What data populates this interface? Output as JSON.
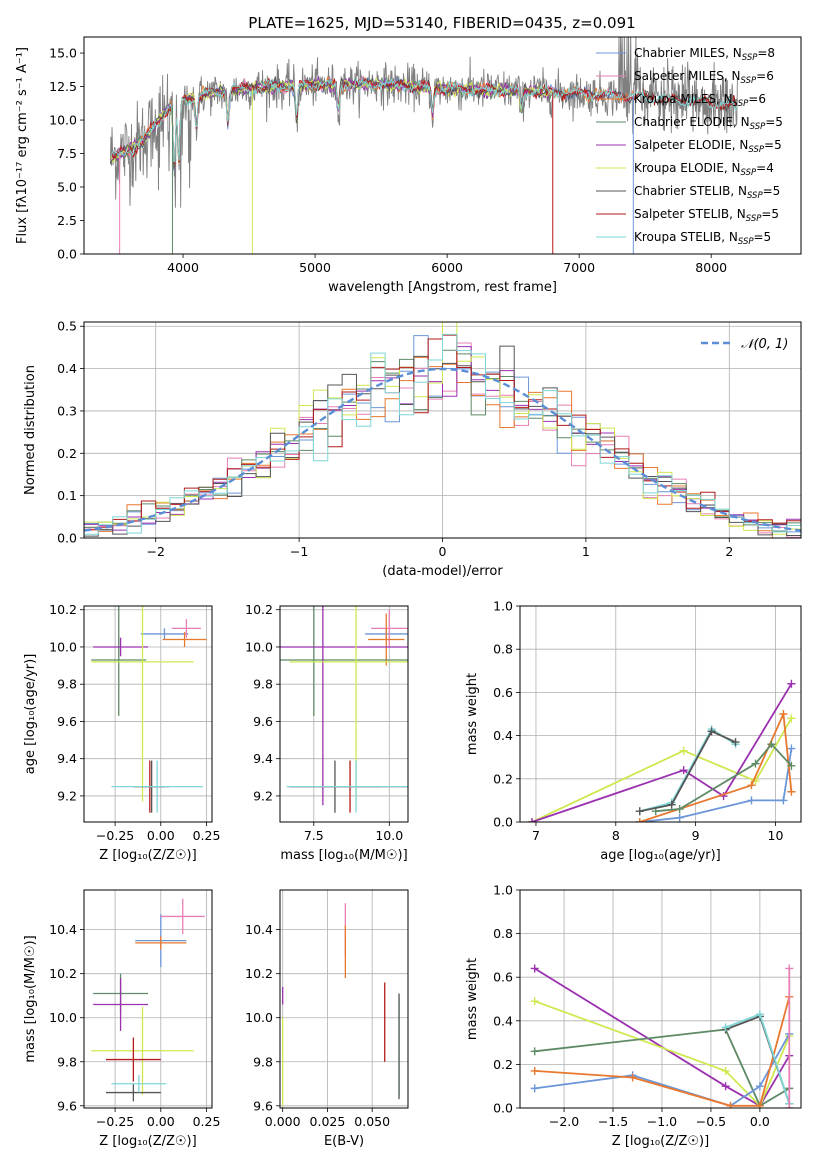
{
  "figure_title": "PLATE=1625, MJD=53140, FIBERID=0435, z=0.091",
  "colors": {
    "Chabrier MILES": "#6b96d8",
    "Salpeter MILES": "#e87fb4",
    "Kroupa MILES": "#e8782e",
    "Chabrier ELODIE": "#5e8a66",
    "Salpeter ELODIE": "#9b30b0",
    "Kroupa ELODIE": "#cfe850",
    "Chabrier STELIB": "#555555",
    "Salpeter STELIB": "#b31a1a",
    "Kroupa STELIB": "#7fd6d6",
    "data": "#7f7f7f"
  },
  "chart_data": [
    {
      "id": "spectrum",
      "type": "line",
      "title": "PLATE=1625, MJD=53140, FIBERID=0435, z=0.091",
      "xlabel": "wavelength [Angstrom, rest frame]",
      "ylabel": "Flux [fλ10⁻¹⁷ erg cm⁻² s⁻¹ A⁻¹]",
      "xlim": [
        3250,
        8680
      ],
      "ylim": [
        0,
        16.2
      ],
      "xticks": [
        "4000",
        "5000",
        "6000",
        "7000",
        "8000"
      ],
      "yticks": [
        "0.0",
        "2.5",
        "5.0",
        "7.5",
        "10.0",
        "12.5",
        "15.0"
      ],
      "legend_position": "top-right",
      "legend": [
        {
          "label": "Chabrier MILES, N",
          "sub": "SSP",
          "eq": "=8"
        },
        {
          "label": "Salpeter MILES, N",
          "sub": "SSP",
          "eq": "=6"
        },
        {
          "label": "Kroupa MILES, N",
          "sub": "SSP",
          "eq": "=6"
        },
        {
          "label": "Chabrier ELODIE, N",
          "sub": "SSP",
          "eq": "=5"
        },
        {
          "label": "Salpeter ELODIE, N",
          "sub": "SSP",
          "eq": "=5"
        },
        {
          "label": "Kroupa ELODIE, N",
          "sub": "SSP",
          "eq": "=4"
        },
        {
          "label": "Chabrier STELIB, N",
          "sub": "SSP",
          "eq": "=5"
        },
        {
          "label": "Salpeter STELIB, N",
          "sub": "SSP",
          "eq": "=5"
        },
        {
          "label": "Kroupa STELIB, N",
          "sub": "SSP",
          "eq": "=5"
        }
      ],
      "continuum": {
        "x": [
          3450,
          3600,
          3700,
          3800,
          3900,
          4000,
          4200,
          4500,
          5000,
          5500,
          6000,
          6500,
          7000,
          7500,
          8000,
          8200
        ],
        "y": [
          7.2,
          7.8,
          8.5,
          9.8,
          11.0,
          11.5,
          12.0,
          12.4,
          12.6,
          12.7,
          12.3,
          12.2,
          12.0,
          11.7,
          11.3,
          11.0
        ]
      },
      "absorption_lines": [
        {
          "x": 3934,
          "depth": 0.45
        },
        {
          "x": 3968,
          "depth": 0.4
        },
        {
          "x": 4102,
          "depth": 0.2
        },
        {
          "x": 4340,
          "depth": 0.2
        },
        {
          "x": 4861,
          "depth": 0.2
        },
        {
          "x": 5175,
          "depth": 0.15
        },
        {
          "x": 5890,
          "depth": 0.15
        },
        {
          "x": 6563,
          "depth": 0.12
        }
      ],
      "spikes": [
        {
          "x": 3520,
          "y": 0.0
        },
        {
          "x": 3920,
          "y": 0.0
        },
        {
          "x": 4525,
          "y": 0.0
        },
        {
          "x": 6800,
          "y": 0.0
        },
        {
          "x": 7410,
          "y": 0.0
        }
      ]
    },
    {
      "id": "residuals",
      "type": "histogram",
      "xlabel": "(data-model)/error",
      "ylabel": "Normed distribution",
      "xlim": [
        -2.5,
        2.5
      ],
      "ylim": [
        0,
        0.51
      ],
      "xticks": [
        "−2",
        "−1",
        "0",
        "1",
        "2"
      ],
      "yticks": [
        "0.0",
        "0.1",
        "0.2",
        "0.3",
        "0.4",
        "0.5"
      ],
      "bin_width": 0.1,
      "legend": "𝒩(0, 1)",
      "gaussian_sigma": 1.0
    },
    {
      "id": "age_vs_Z",
      "type": "errorbar",
      "xlabel": "Z [log₁₀(Z/Z☉)]",
      "ylabel": "age  [log₁₀(age/yr)]",
      "xlim": [
        -0.42,
        0.28
      ],
      "ylim": [
        9.06,
        10.22
      ],
      "xticks": [
        "−0.25",
        "0.00",
        "0.25"
      ],
      "yticks": [
        "9.2",
        "9.4",
        "9.6",
        "9.8",
        "10.0",
        "10.2"
      ],
      "points": [
        {
          "model": "Chabrier MILES",
          "x": 0.02,
          "xerr": 0.13,
          "y": 10.07,
          "yerr": 0.03
        },
        {
          "model": "Salpeter MILES",
          "x": 0.14,
          "xerr": 0.08,
          "y": 10.1,
          "yerr": 0.05
        },
        {
          "model": "Kroupa MILES",
          "x": 0.13,
          "xerr": 0.12,
          "y": 10.04,
          "yerr": 0.04
        },
        {
          "model": "Chabrier ELODIE",
          "x": -0.23,
          "xerr": 0.15,
          "y": 9.93,
          "yerr": 0.3
        },
        {
          "model": "Salpeter ELODIE",
          "x": -0.22,
          "xerr": 0.15,
          "y": 10.0,
          "yerr": 0.05
        },
        {
          "model": "Kroupa ELODIE",
          "x": -0.1,
          "xerr": 0.28,
          "y": 9.92,
          "yerr": 0.75
        },
        {
          "model": "Chabrier STELIB",
          "x": -0.05,
          "xerr": 0.1,
          "y": 9.25,
          "yerr": 0.14
        },
        {
          "model": "Salpeter STELIB",
          "x": -0.06,
          "xerr": 0.08,
          "y": 9.25,
          "yerr": 0.14
        },
        {
          "model": "Kroupa STELIB",
          "x": -0.02,
          "xerr": 0.25,
          "y": 9.25,
          "yerr": 0.14
        }
      ]
    },
    {
      "id": "age_vs_mass",
      "type": "errorbar",
      "xlabel": "mass [log₁₀(M/M☉)]",
      "ylabel": "",
      "xlim": [
        6.38,
        10.62
      ],
      "ylim": [
        9.06,
        10.22
      ],
      "xticks": [
        "7.5",
        "10.0"
      ],
      "yticks": [
        "9.2",
        "9.4",
        "9.6",
        "9.8",
        "10.0",
        "10.2"
      ],
      "points": [
        {
          "model": "Chabrier MILES",
          "x": 9.9,
          "xerr": 0.7,
          "y": 10.07,
          "yerr": 0.03
        },
        {
          "model": "Salpeter MILES",
          "x": 10.0,
          "xerr": 0.6,
          "y": 10.1,
          "yerr": 0.1
        },
        {
          "model": "Kroupa MILES",
          "x": 9.9,
          "xerr": 0.6,
          "y": 10.04,
          "yerr": 0.14
        },
        {
          "model": "Chabrier ELODIE",
          "x": 7.5,
          "xerr": 3.6,
          "y": 9.93,
          "yerr": 0.3
        },
        {
          "model": "Salpeter ELODIE",
          "x": 7.8,
          "xerr": 3.1,
          "y": 10.0,
          "yerr": 0.85
        },
        {
          "model": "Kroupa ELODIE",
          "x": 8.9,
          "xerr": 2.2,
          "y": 9.92,
          "yerr": 0.75
        },
        {
          "model": "Chabrier STELIB",
          "x": 8.2,
          "xerr": 1.5,
          "y": 9.25,
          "yerr": 0.14
        },
        {
          "model": "Salpeter STELIB",
          "x": 8.7,
          "xerr": 2.0,
          "y": 9.25,
          "yerr": 0.14
        },
        {
          "model": "Kroupa STELIB",
          "x": 8.9,
          "xerr": 2.3,
          "y": 9.25,
          "yerr": 0.14
        }
      ]
    },
    {
      "id": "massweight_vs_age",
      "type": "line",
      "xlabel": "age  [log₁₀(age/yr)]",
      "ylabel": "mass weight",
      "xlim": [
        6.8,
        10.32
      ],
      "ylim": [
        0,
        1.0
      ],
      "xticks": [
        "7",
        "8",
        "9",
        "10"
      ],
      "yticks": [
        "0.0",
        "0.2",
        "0.4",
        "0.6",
        "0.8",
        "1.0"
      ],
      "series": [
        {
          "model": "Kroupa ELODIE",
          "x": [
            6.95,
            8.85,
            9.75,
            10.2
          ],
          "y": [
            0.0,
            0.33,
            0.19,
            0.48
          ]
        },
        {
          "model": "Salpeter ELODIE",
          "x": [
            6.95,
            8.85,
            9.35,
            10.2
          ],
          "y": [
            0.0,
            0.24,
            0.12,
            0.64
          ]
        },
        {
          "model": "Chabrier MILES",
          "x": [
            8.3,
            8.8,
            9.7,
            10.1,
            10.2
          ],
          "y": [
            0.0,
            0.02,
            0.1,
            0.1,
            0.34
          ]
        },
        {
          "model": "Kroupa MILES",
          "x": [
            8.3,
            9.7,
            10.1,
            10.2
          ],
          "y": [
            0.0,
            0.17,
            0.5,
            0.14
          ]
        },
        {
          "model": "Chabrier ELODIE",
          "x": [
            8.5,
            8.8,
            9.75,
            9.95,
            10.2
          ],
          "y": [
            0.05,
            0.06,
            0.27,
            0.36,
            0.26
          ]
        },
        {
          "model": "Kroupa STELIB",
          "x": [
            8.3,
            8.7,
            9.2,
            9.5
          ],
          "y": [
            0.05,
            0.09,
            0.43,
            0.36
          ]
        },
        {
          "model": "Chabrier STELIB",
          "x": [
            8.3,
            8.7,
            9.2,
            9.5
          ],
          "y": [
            0.05,
            0.08,
            0.42,
            0.37
          ]
        }
      ]
    },
    {
      "id": "mass_vs_Z",
      "type": "errorbar",
      "xlabel": "Z [log₁₀(Z/Z☉)]",
      "ylabel": "mass [log₁₀(M/M☉)]",
      "xlim": [
        -0.42,
        0.28
      ],
      "ylim": [
        9.59,
        10.58
      ],
      "xticks": [
        "−0.25",
        "0.00",
        "0.25"
      ],
      "yticks": [
        "9.6",
        "9.8",
        "10.0",
        "10.2",
        "10.4"
      ],
      "points": [
        {
          "model": "Chabrier MILES",
          "x": 0.0,
          "xerr": 0.14,
          "y": 10.35,
          "yerr": 0.12
        },
        {
          "model": "Salpeter MILES",
          "x": 0.12,
          "xerr": 0.12,
          "y": 10.46,
          "yerr": 0.08
        },
        {
          "model": "Kroupa MILES",
          "x": 0.0,
          "xerr": 0.14,
          "y": 10.34,
          "yerr": 0.03
        },
        {
          "model": "Chabrier ELODIE",
          "x": -0.22,
          "xerr": 0.15,
          "y": 10.11,
          "yerr": 0.09
        },
        {
          "model": "Salpeter ELODIE",
          "x": -0.22,
          "xerr": 0.15,
          "y": 10.06,
          "yerr": 0.12
        },
        {
          "model": "Kroupa ELODIE",
          "x": -0.1,
          "xerr": 0.28,
          "y": 9.85,
          "yerr": 0.2
        },
        {
          "model": "Chabrier STELIB",
          "x": -0.15,
          "xerr": 0.15,
          "y": 9.66,
          "yerr": 0.04
        },
        {
          "model": "Salpeter STELIB",
          "x": -0.15,
          "xerr": 0.15,
          "y": 9.81,
          "yerr": 0.1
        },
        {
          "model": "Kroupa STELIB",
          "x": -0.12,
          "xerr": 0.15,
          "y": 9.7,
          "yerr": 0.04
        }
      ]
    },
    {
      "id": "mass_vs_ebv",
      "type": "errorbar",
      "xlabel": "E(B-V)",
      "ylabel": "",
      "xlim": [
        -0.0015,
        0.07
      ],
      "ylim": [
        9.59,
        10.58
      ],
      "xticks": [
        "0.000",
        "0.025",
        "0.050"
      ],
      "yticks": [
        "9.6",
        "9.8",
        "10.0",
        "10.2",
        "10.4"
      ],
      "points": [
        {
          "model": "Salpeter MILES",
          "x": 0.035,
          "y": 10.4,
          "yerr": 0.12
        },
        {
          "model": "Kroupa MILES",
          "x": 0.035,
          "y": 10.3,
          "yerr": 0.12
        },
        {
          "model": "Salpeter ELODIE",
          "x": 0.0,
          "y": 10.1,
          "yerr": 0.04
        },
        {
          "model": "Kroupa ELODIE",
          "x": 0.0,
          "y": 9.8,
          "yerr": 0.2
        },
        {
          "model": "Salpeter STELIB",
          "x": 0.057,
          "y": 9.98,
          "yerr": 0.18
        },
        {
          "model": "Kroupa STELIB",
          "x": 0.065,
          "y": 9.87,
          "yerr": 0.22
        },
        {
          "model": "Chabrier STELIB",
          "x": 0.065,
          "y": 9.87,
          "yerr": 0.24
        }
      ]
    },
    {
      "id": "massweight_vs_Z",
      "type": "line",
      "xlabel": "Z [log₁₀(Z/Z☉)]",
      "ylabel": "mass weight",
      "xlim": [
        -2.45,
        0.42
      ],
      "ylim": [
        0,
        1.0
      ],
      "xticks": [
        "−2.0",
        "−1.5",
        "−1.0",
        "−0.5",
        "0.0"
      ],
      "yticks": [
        "0.0",
        "0.2",
        "0.4",
        "0.6",
        "0.8",
        "1.0"
      ],
      "series": [
        {
          "model": "Salpeter ELODIE",
          "x": [
            -2.3,
            -0.35,
            0.0,
            0.3
          ],
          "y": [
            0.64,
            0.1,
            0.01,
            0.24
          ]
        },
        {
          "model": "Kroupa ELODIE",
          "x": [
            -2.3,
            -0.35,
            0.0,
            0.3
          ],
          "y": [
            0.49,
            0.17,
            0.01,
            0.33
          ]
        },
        {
          "model": "Chabrier ELODIE",
          "x": [
            -2.3,
            -0.35,
            0.0,
            0.3
          ],
          "y": [
            0.26,
            0.36,
            0.01,
            0.09
          ]
        },
        {
          "model": "Chabrier MILES",
          "x": [
            -2.3,
            -1.3,
            -0.3,
            0.0,
            0.3
          ],
          "y": [
            0.09,
            0.15,
            0.01,
            0.1,
            0.34
          ]
        },
        {
          "model": "Kroupa MILES",
          "x": [
            -2.3,
            -1.3,
            -0.3,
            0.0,
            0.3
          ],
          "y": [
            0.17,
            0.14,
            0.01,
            0.01,
            0.51
          ]
        },
        {
          "model": "Chabrier STELIB",
          "x": [
            -0.35,
            0.0,
            0.3
          ],
          "y": [
            0.36,
            0.42,
            0.02
          ]
        },
        {
          "model": "Kroupa STELIB",
          "x": [
            -0.35,
            0.0,
            0.3
          ],
          "y": [
            0.37,
            0.43,
            0.02
          ]
        },
        {
          "model": "Salpeter MILES",
          "x": [
            0.3,
            0.3
          ],
          "y": [
            0.0,
            0.64
          ]
        }
      ]
    }
  ]
}
